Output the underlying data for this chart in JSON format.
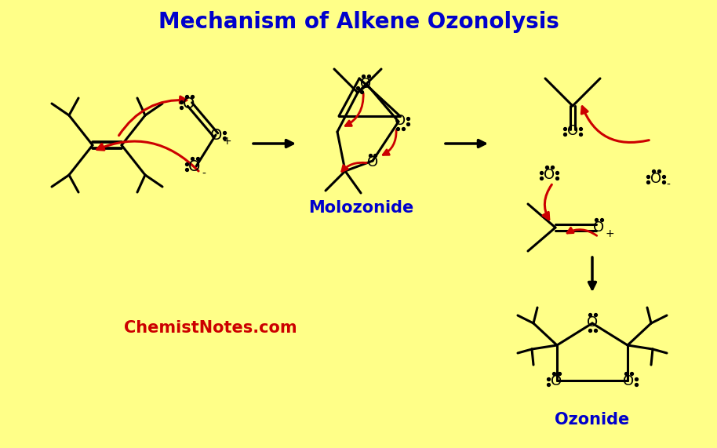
{
  "title": "Mechanism of Alkene Ozonolysis",
  "title_color": "#0000CC",
  "title_fontsize": 20,
  "background_color": "#FFFF88",
  "label_molozonide": "Molozonide",
  "label_ozonide": "Ozonide",
  "label_chemist": "ChemistNotes.com",
  "label_color_blue": "#0000CC",
  "label_color_red": "#CC0000",
  "arrow_color": "#000000",
  "red_arrow_color": "#CC0000",
  "bond_color": "#000000",
  "line_width": 2.2
}
